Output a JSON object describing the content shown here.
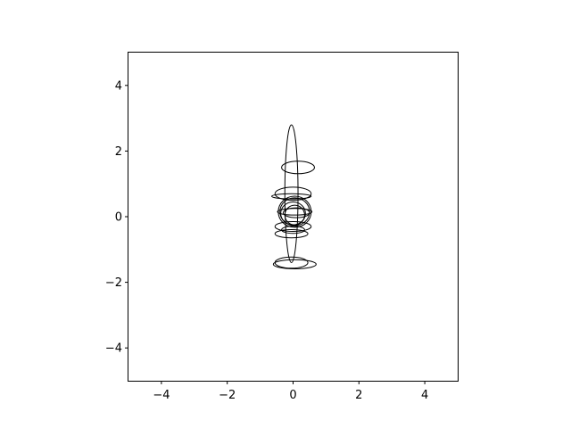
{
  "chart_data": {
    "type": "scatter",
    "title": "",
    "xlabel": "",
    "ylabel": "",
    "xlim": [
      -5,
      5
    ],
    "ylim": [
      -5,
      5
    ],
    "grid": false,
    "aspect": "equal",
    "xticks": [
      -4,
      -2,
      0,
      2,
      4
    ],
    "yticks": [
      -4,
      -2,
      0,
      2,
      4
    ],
    "xtick_labels": [
      "−4",
      "−2",
      "0",
      "2",
      "4"
    ],
    "ytick_labels": [
      "−4",
      "−2",
      "0",
      "2",
      "4"
    ],
    "ellipse_color": "#000000",
    "ellipses": [
      {
        "cx": -0.05,
        "cy": 0.7,
        "w": 0.4,
        "h": 4.2
      },
      {
        "cx": 0.15,
        "cy": 1.5,
        "w": 1.0,
        "h": 0.38
      },
      {
        "cx": 0.0,
        "cy": 0.7,
        "w": 1.1,
        "h": 0.4
      },
      {
        "cx": -0.05,
        "cy": 0.62,
        "w": 1.2,
        "h": 0.16
      },
      {
        "cx": 0.05,
        "cy": 0.15,
        "w": 1.05,
        "h": 0.2
      },
      {
        "cx": 0.1,
        "cy": 0.12,
        "w": 0.8,
        "h": 0.3
      },
      {
        "cx": 0.05,
        "cy": 0.15,
        "w": 1.0,
        "h": 0.95
      },
      {
        "cx": 0.05,
        "cy": 0.15,
        "w": 0.9,
        "h": 0.85
      },
      {
        "cx": 0.0,
        "cy": 0.1,
        "w": 0.75,
        "h": 0.7
      },
      {
        "cx": 0.05,
        "cy": 0.05,
        "w": 0.6,
        "h": 0.6
      },
      {
        "cx": 0.0,
        "cy": -0.3,
        "w": 1.1,
        "h": 0.3
      },
      {
        "cx": 0.0,
        "cy": -0.4,
        "w": 0.7,
        "h": 0.22
      },
      {
        "cx": -0.05,
        "cy": -0.52,
        "w": 1.0,
        "h": 0.25
      },
      {
        "cx": 0.05,
        "cy": -1.45,
        "w": 1.3,
        "h": 0.28
      },
      {
        "cx": -0.05,
        "cy": -1.4,
        "w": 1.0,
        "h": 0.34
      }
    ]
  }
}
